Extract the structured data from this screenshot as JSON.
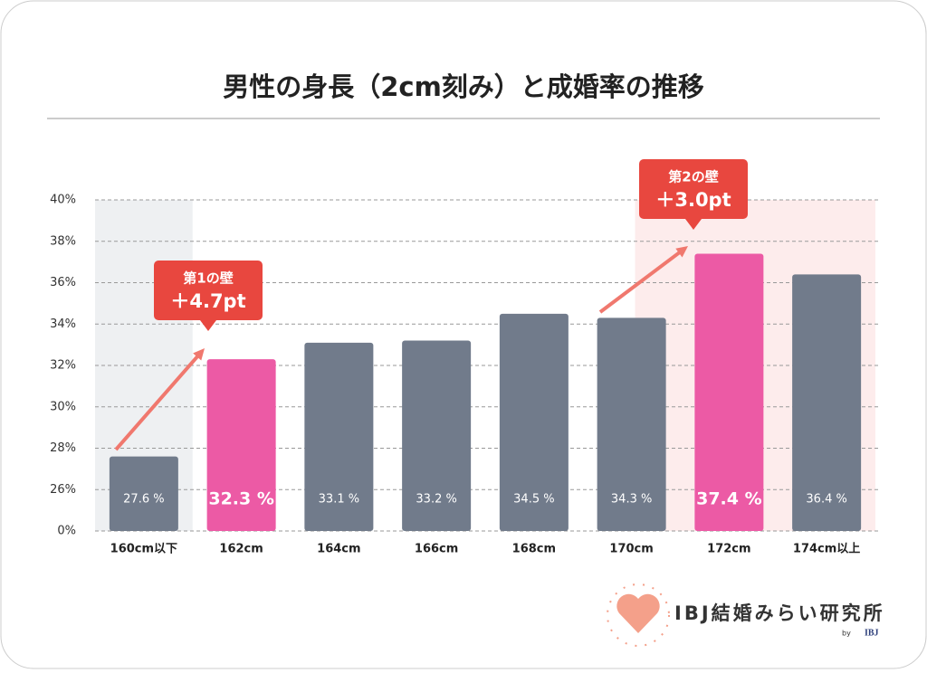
{
  "chart_data": {
    "type": "bar",
    "title": "男性の身長（2cm刻み）と成婚率の推移",
    "categories": [
      "160cm以下",
      "162cm",
      "164cm",
      "166cm",
      "168cm",
      "170cm",
      "172cm",
      "174cm以上"
    ],
    "values": [
      27.6,
      32.3,
      33.1,
      33.2,
      34.5,
      34.3,
      37.4,
      36.4
    ],
    "value_labels": [
      "27.6 %",
      "32.3 %",
      "33.1 %",
      "33.2 %",
      "34.5 %",
      "34.3 %",
      "37.4 %",
      "36.4 %"
    ],
    "colors": [
      "#717b8b",
      "#ec5aa5",
      "#717b8b",
      "#717b8b",
      "#717b8b",
      "#717b8b",
      "#ec5aa5",
      "#717b8b"
    ],
    "ylim": [
      0,
      40
    ],
    "yticks": [
      {
        "value": 0,
        "label": "0%"
      },
      {
        "value": 26,
        "label": "26%"
      },
      {
        "value": 28,
        "label": "28%"
      },
      {
        "value": 30,
        "label": "30%"
      },
      {
        "value": 32,
        "label": "32%"
      },
      {
        "value": 34,
        "label": "34%"
      },
      {
        "value": 36,
        "label": "36%"
      },
      {
        "value": 38,
        "label": "38%"
      },
      {
        "value": 40,
        "label": "40%"
      }
    ],
    "grid": true,
    "annotations": [
      {
        "title": "第1の壁",
        "label": "＋4.7pt"
      },
      {
        "title": "第2の壁",
        "label": "＋3.0pt"
      }
    ]
  },
  "logo": {
    "name": "IBJ結婚みらい研究所",
    "by": "by",
    "brand": "IBJ"
  }
}
